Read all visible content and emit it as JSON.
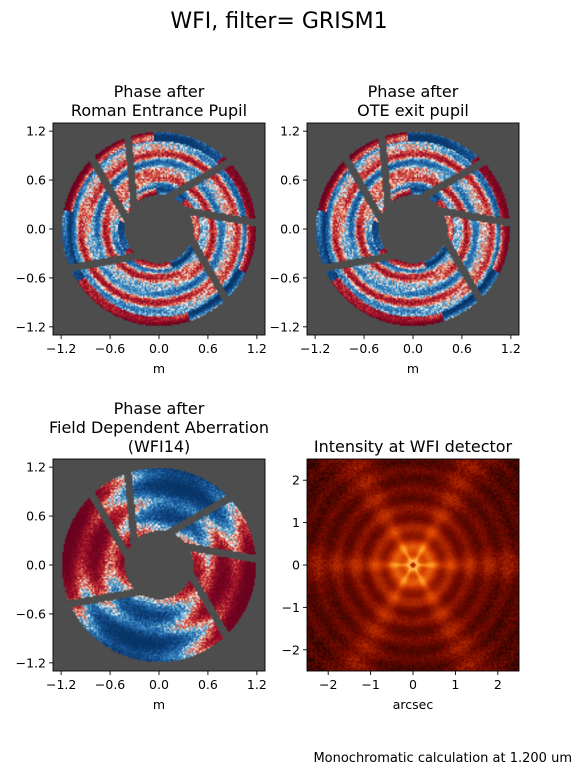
{
  "figure": {
    "suptitle": "WFI, filter= GRISM1",
    "footnote": "Monochromatic calculation at 1.200 um"
  },
  "colors": {
    "background_gray": "#4d4d4d",
    "phase_red": "#67001f",
    "phase_blue": "#053061",
    "intensity_core": "#ffffc8",
    "intensity_mid": "#e03a00",
    "intensity_dark": "#000000"
  },
  "chart_data": [
    {
      "type": "heatmap",
      "title_lines": [
        "Phase after",
        "Roman Entrance Pupil"
      ],
      "xlabel": "m",
      "ylabel": "",
      "xlim": [
        -1.3,
        1.3
      ],
      "ylim": [
        -1.3,
        1.3
      ],
      "xticks": [
        -1.2,
        -0.6,
        0.0,
        0.6,
        1.2
      ],
      "yticks": [
        -1.2,
        -0.6,
        0.0,
        0.6,
        1.2
      ],
      "xtick_labels": [
        "−1.2",
        "−0.6",
        "0.0",
        "0.6",
        "1.2"
      ],
      "ytick_labels": [
        "−1.2",
        "−0.6",
        "0.0",
        "0.6",
        "1.2"
      ],
      "colormap": "RdBu_r",
      "pupil": {
        "outer_radius": 1.19,
        "inner_radius": 0.42,
        "strut_angles_deg": [
          -170,
          -60,
          -10,
          30,
          95,
          120
        ],
        "strut_width": 0.09
      },
      "pattern": "rings"
    },
    {
      "type": "heatmap",
      "title_lines": [
        "Phase after",
        "OTE exit pupil"
      ],
      "xlabel": "m",
      "ylabel": "",
      "xlim": [
        -1.3,
        1.3
      ],
      "ylim": [
        -1.3,
        1.3
      ],
      "xticks": [
        -1.2,
        -0.6,
        0.0,
        0.6,
        1.2
      ],
      "yticks": [
        -1.2,
        -0.6,
        0.0,
        0.6,
        1.2
      ],
      "xtick_labels": [
        "−1.2",
        "−0.6",
        "0.0",
        "0.6",
        "1.2"
      ],
      "ytick_labels": [
        "−1.2",
        "−0.6",
        "0.0",
        "0.6",
        "1.2"
      ],
      "colormap": "RdBu_r",
      "pupil": {
        "outer_radius": 1.19,
        "inner_radius": 0.42,
        "strut_angles_deg": [
          -170,
          -60,
          -10,
          30,
          95,
          120
        ],
        "strut_width": 0.09
      },
      "pattern": "rings"
    },
    {
      "type": "heatmap",
      "title_lines": [
        "Phase after",
        "Field Dependent Aberration",
        "(WFI14)"
      ],
      "xlabel": "m",
      "ylabel": "",
      "xlim": [
        -1.3,
        1.3
      ],
      "ylim": [
        -1.3,
        1.3
      ],
      "xticks": [
        -1.2,
        -0.6,
        0.0,
        0.6,
        1.2
      ],
      "yticks": [
        -1.2,
        -0.6,
        0.0,
        0.6,
        1.2
      ],
      "xtick_labels": [
        "−1.2",
        "−0.6",
        "0.0",
        "0.6",
        "1.2"
      ],
      "ytick_labels": [
        "−1.2",
        "−0.6",
        "0.0",
        "0.6",
        "1.2"
      ],
      "colormap": "RdBu_r",
      "pupil": {
        "outer_radius": 1.19,
        "inner_radius": 0.42,
        "strut_angles_deg": [
          -170,
          -60,
          -10,
          30,
          95,
          120
        ],
        "strut_width": 0.09
      },
      "pattern": "astigmatism"
    },
    {
      "type": "heatmap",
      "title_lines": [
        "Intensity at WFI detector"
      ],
      "xlabel": "arcsec",
      "ylabel": "",
      "xlim": [
        -2.5,
        2.5
      ],
      "ylim": [
        -2.5,
        2.5
      ],
      "xticks": [
        -2,
        -1,
        0,
        1,
        2
      ],
      "yticks": [
        -2,
        -1,
        0,
        1,
        2
      ],
      "xtick_labels": [
        "−2",
        "−1",
        "0",
        "1",
        "2"
      ],
      "ytick_labels": [
        "−2",
        "−1",
        "0",
        "1",
        "2"
      ],
      "colormap": "gist_heat",
      "pattern": "psf"
    }
  ]
}
